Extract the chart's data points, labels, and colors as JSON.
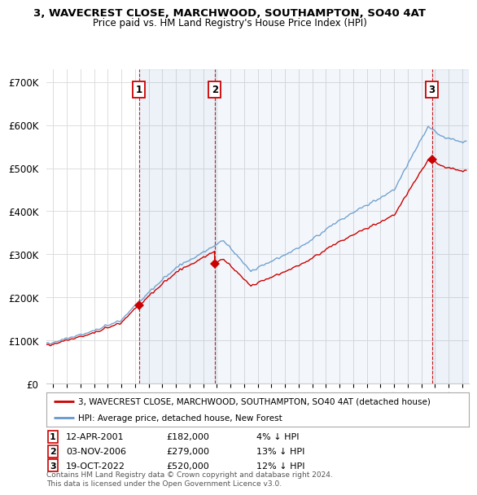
{
  "title": "3, WAVECREST CLOSE, MARCHWOOD, SOUTHAMPTON, SO40 4AT",
  "subtitle": "Price paid vs. HM Land Registry's House Price Index (HPI)",
  "property_label": "3, WAVECREST CLOSE, MARCHWOOD, SOUTHAMPTON, SO40 4AT (detached house)",
  "hpi_label": "HPI: Average price, detached house, New Forest",
  "property_color": "#cc0000",
  "hpi_color": "#6699cc",
  "hpi_fill_color": "#ddeeff",
  "transaction_color": "#cc0000",
  "vline_color": "#cc0000",
  "transactions": [
    {
      "num": 1,
      "date_x": 2001.28,
      "price": 182000,
      "label": "1",
      "pct": "4% ↓ HPI",
      "date_str": "12-APR-2001"
    },
    {
      "num": 2,
      "date_x": 2006.84,
      "price": 279000,
      "label": "2",
      "pct": "13% ↓ HPI",
      "date_str": "03-NOV-2006"
    },
    {
      "num": 3,
      "date_x": 2022.79,
      "price": 520000,
      "label": "3",
      "pct": "12% ↓ HPI",
      "date_str": "19-OCT-2022"
    }
  ],
  "ylim": [
    0,
    730000
  ],
  "xlim": [
    1994.5,
    2025.5
  ],
  "yticks": [
    0,
    100000,
    200000,
    300000,
    400000,
    500000,
    600000,
    700000
  ],
  "ytick_labels": [
    "£0",
    "£100K",
    "£200K",
    "£300K",
    "£400K",
    "£500K",
    "£600K",
    "£700K"
  ],
  "xticks": [
    1995,
    1996,
    1997,
    1998,
    1999,
    2000,
    2001,
    2002,
    2003,
    2004,
    2005,
    2006,
    2007,
    2008,
    2009,
    2010,
    2011,
    2012,
    2013,
    2014,
    2015,
    2016,
    2017,
    2018,
    2019,
    2020,
    2021,
    2022,
    2023,
    2024,
    2025
  ],
  "footer": "Contains HM Land Registry data © Crown copyright and database right 2024.\nThis data is licensed under the Open Government Licence v3.0.",
  "bg_color": "#ffffff",
  "plot_bg_color": "#ffffff",
  "grid_color": "#dddddd"
}
